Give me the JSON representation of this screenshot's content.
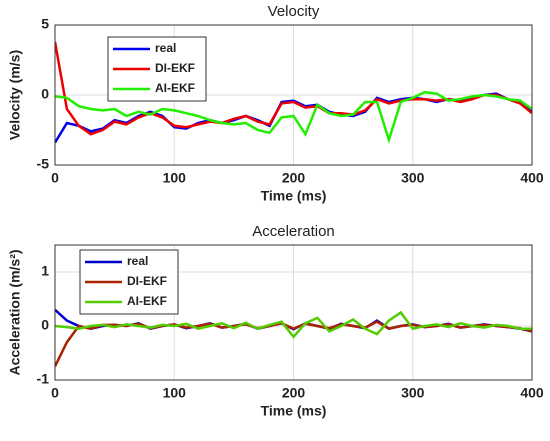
{
  "chart_data": [
    {
      "type": "line",
      "title": "Velocity",
      "x_label": "Time (ms)",
      "y_label": "Velocity (m/s)",
      "x": [
        0,
        10,
        20,
        30,
        40,
        50,
        60,
        70,
        80,
        90,
        100,
        110,
        120,
        130,
        140,
        150,
        160,
        170,
        180,
        190,
        200,
        210,
        220,
        230,
        240,
        250,
        260,
        270,
        280,
        290,
        300,
        310,
        320,
        330,
        340,
        350,
        360,
        370,
        380,
        390,
        400
      ],
      "xlim": [
        0,
        400
      ],
      "xticks": [
        0,
        100,
        200,
        300,
        400
      ],
      "ylim": [
        -5,
        5
      ],
      "yticks": [
        -5,
        0,
        5
      ],
      "grid": true,
      "legend": "upper left",
      "series": [
        {
          "name": "real",
          "color": "#0000ee",
          "values": [
            -3.4,
            -2,
            -2.2,
            -2.6,
            -2.4,
            -1.8,
            -2,
            -1.5,
            -1.2,
            -1.5,
            -2.3,
            -2.4,
            -2,
            -1.8,
            -2,
            -1.8,
            -1.5,
            -1.8,
            -2.2,
            -0.5,
            -0.4,
            -0.8,
            -0.7,
            -1.2,
            -1.4,
            -1.5,
            -1.2,
            -0.2,
            -0.5,
            -0.3,
            -0.2,
            -0.3,
            -0.5,
            -0.3,
            -0.4,
            -0.2,
            0,
            0.1,
            -0.3,
            -0.5,
            -1.2
          ]
        },
        {
          "name": "DI-EKF",
          "color": "#ee0000",
          "values": [
            3.8,
            -1,
            -2.2,
            -2.8,
            -2.5,
            -1.9,
            -2.1,
            -1.6,
            -1.3,
            -1.6,
            -2.2,
            -2.3,
            -2.1,
            -1.9,
            -2,
            -1.7,
            -1.5,
            -1.9,
            -2.1,
            -0.6,
            -0.5,
            -0.9,
            -0.8,
            -1.3,
            -1.3,
            -1.4,
            -1.1,
            -0.3,
            -0.6,
            -0.4,
            -0.3,
            -0.3,
            -0.4,
            -0.3,
            -0.5,
            -0.3,
            0,
            0,
            -0.3,
            -0.6,
            -1.3
          ]
        },
        {
          "name": "AI-EKF",
          "color": "#22ee00",
          "values": [
            -0.1,
            -0.2,
            -0.8,
            -1,
            -1.1,
            -1,
            -1.5,
            -1.2,
            -1.4,
            -1,
            -1.1,
            -1.3,
            -1.5,
            -1.8,
            -2,
            -2.1,
            -2,
            -2.5,
            -2.7,
            -1.6,
            -1.5,
            -2.8,
            -0.7,
            -1.3,
            -1.5,
            -1.4,
            -0.5,
            -0.5,
            -3.2,
            -0.5,
            -0.2,
            0.2,
            0.1,
            -0.4,
            -0.3,
            -0.1,
            0,
            -0.1,
            -0.3,
            -0.4,
            -1
          ]
        }
      ]
    },
    {
      "type": "line",
      "title": "Acceleration",
      "x_label": "Time (ms)",
      "y_label": "Acceleration (m/s²)",
      "x": [
        0,
        10,
        20,
        30,
        40,
        50,
        60,
        70,
        80,
        90,
        100,
        110,
        120,
        130,
        140,
        150,
        160,
        170,
        180,
        190,
        200,
        210,
        220,
        230,
        240,
        250,
        260,
        270,
        280,
        290,
        300,
        310,
        320,
        330,
        340,
        350,
        360,
        370,
        380,
        390,
        400
      ],
      "xlim": [
        0,
        400
      ],
      "xticks": [
        0,
        100,
        200,
        300,
        400
      ],
      "ylim": [
        -1,
        1.5
      ],
      "yticks": [
        -1,
        0,
        1
      ],
      "grid": true,
      "legend": "upper left",
      "series": [
        {
          "name": "real",
          "color": "#0000cc",
          "values": [
            0.3,
            0.1,
            0,
            -0.05,
            0,
            0.02,
            0,
            0.05,
            -0.05,
            0,
            0.03,
            -0.04,
            0,
            0.05,
            -0.03,
            0,
            0.04,
            -0.05,
            0,
            0.05,
            -0.06,
            0.05,
            0,
            -0.05,
            0.04,
            0,
            -0.04,
            0.1,
            -0.05,
            0,
            0.03,
            -0.02,
            0,
            0.04,
            -0.03,
            0,
            0.03,
            0,
            -0.02,
            -0.05,
            -0.1
          ]
        },
        {
          "name": "DI-EKF",
          "color": "#aa2200",
          "values": [
            -0.75,
            -0.3,
            0,
            -0.05,
            0.02,
            0.02,
            0,
            0.04,
            -0.04,
            0,
            0.03,
            -0.03,
            0,
            0.04,
            -0.03,
            0,
            0.03,
            -0.04,
            0,
            0.05,
            -0.05,
            0.04,
            0,
            -0.04,
            0.03,
            0,
            -0.03,
            0.08,
            -0.05,
            0,
            0.02,
            -0.02,
            0,
            0.03,
            -0.03,
            0,
            0.02,
            0,
            -0.02,
            -0.04,
            -0.1
          ]
        },
        {
          "name": "AI-EKF",
          "color": "#55cc00",
          "values": [
            0,
            -0.02,
            -0.05,
            0,
            0.02,
            -0.02,
            0.03,
            0,
            -0.03,
            0.02,
            0,
            0.04,
            -0.05,
            0,
            0.05,
            -0.04,
            0.06,
            -0.05,
            0.02,
            0.08,
            -0.2,
            0.05,
            0.15,
            -0.1,
            0,
            0.12,
            -0.05,
            -0.15,
            0.1,
            0.25,
            -0.05,
            0,
            0.03,
            -0.02,
            0.05,
            0,
            -0.03,
            0.02,
            0,
            -0.05,
            -0.05
          ]
        }
      ]
    }
  ]
}
